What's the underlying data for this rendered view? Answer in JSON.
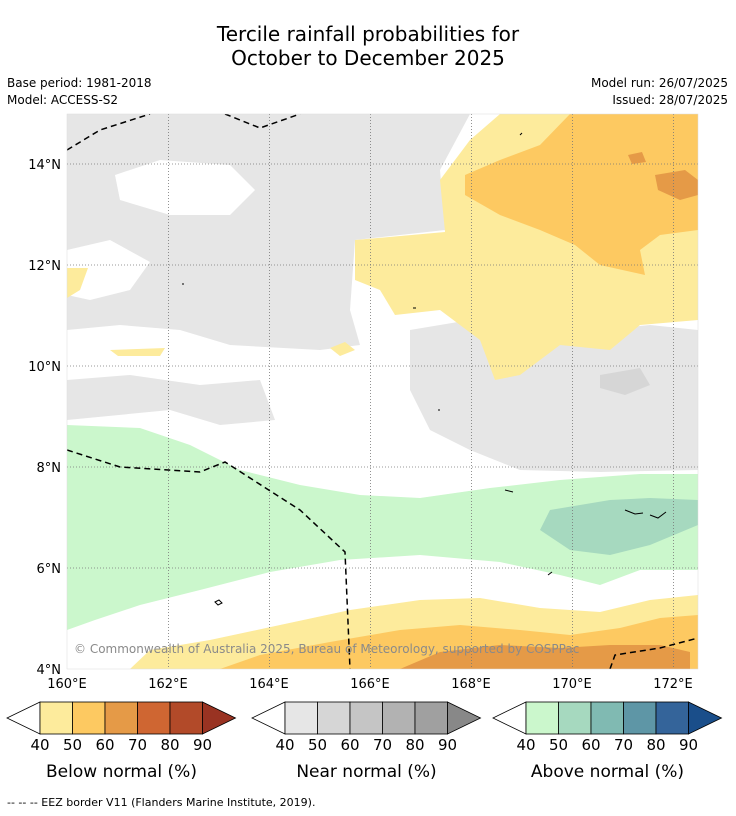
{
  "title_line1": "Tercile rainfall probabilities for",
  "title_line2": "October to December 2025",
  "meta_left": [
    "Base period: 1981-2018",
    "Model: ACCESS-S2"
  ],
  "meta_right": [
    "Model run: 26/07/2025",
    "Issued: 28/07/2025"
  ],
  "axes": {
    "x_ticks": [
      "160°E",
      "162°E",
      "164°E",
      "166°E",
      "168°E",
      "170°E",
      "172°E"
    ],
    "y_ticks": [
      "14°N",
      "12°N",
      "10°N",
      "8°N",
      "6°N",
      "4°N"
    ]
  },
  "copyright": "© Commonwealth of Australia 2025, Bureau of Meteorology, supported by COSPPac",
  "colorbars": [
    {
      "label": "Below normal (%)",
      "ticks": [
        "40",
        "50",
        "60",
        "70",
        "80",
        "90"
      ],
      "colors": [
        "#fdeb9c",
        "#fdc961",
        "#e59a47",
        "#cf6632",
        "#b24a29",
        "#993322"
      ]
    },
    {
      "label": "Near normal (%)",
      "ticks": [
        "40",
        "50",
        "60",
        "70",
        "80",
        "90"
      ],
      "colors": [
        "#e6e6e6",
        "#d6d6d6",
        "#c5c5c5",
        "#b2b2b2",
        "#a0a0a0",
        "#888888"
      ]
    },
    {
      "label": "Above normal (%)",
      "ticks": [
        "40",
        "50",
        "60",
        "70",
        "80",
        "90"
      ],
      "colors": [
        "#cbf7cc",
        "#a6d9bf",
        "#80bab2",
        "#5e96a6",
        "#34649a",
        "#1a4e8a"
      ]
    }
  ],
  "footer": "-- -- -- EEZ border V11 (Flanders Marine Institute, 2019)."
}
